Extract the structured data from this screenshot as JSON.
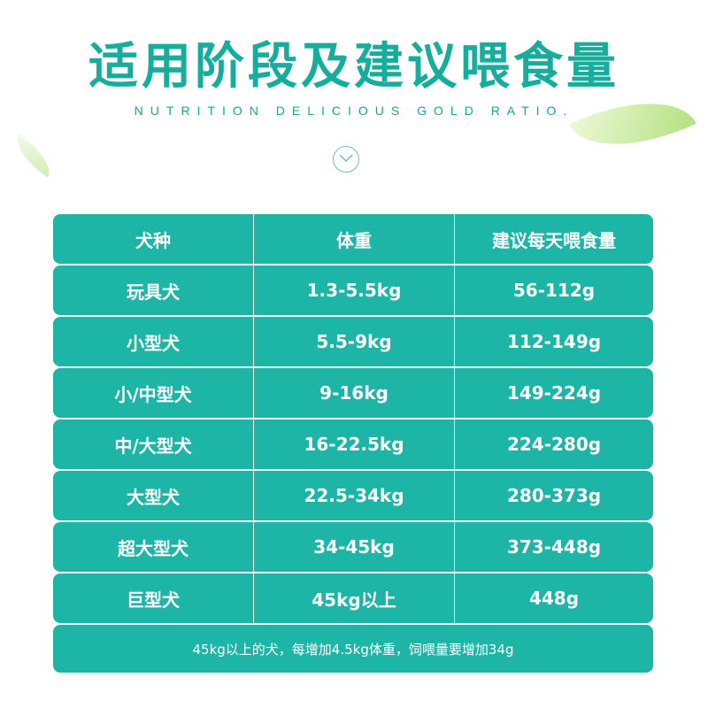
{
  "header": {
    "title": "适用阶段及建议喂食量",
    "subtitle": "NUTRITION DELICIOUS GOLD RATIO."
  },
  "colors": {
    "accent": "#1db5a6",
    "title": "#17ad9c"
  },
  "table": {
    "columns": [
      "犬种",
      "体重",
      "建议每天喂食量"
    ],
    "rows": [
      [
        "玩具犬",
        "1.3-5.5kg",
        "56-112g"
      ],
      [
        "小型犬",
        "5.5-9kg",
        "112-149g"
      ],
      [
        "小/中型犬",
        "9-16kg",
        "149-224g"
      ],
      [
        "中/大型犬",
        "16-22.5kg",
        "224-280g"
      ],
      [
        "大型犬",
        "22.5-34kg",
        "280-373g"
      ],
      [
        "超大型犬",
        "34-45kg",
        "373-448g"
      ],
      [
        "巨型犬",
        "45kg以上",
        "448g"
      ]
    ],
    "footnote": "45kg以上的犬，每增加4.5kg体重，饲喂量要增加34g"
  }
}
